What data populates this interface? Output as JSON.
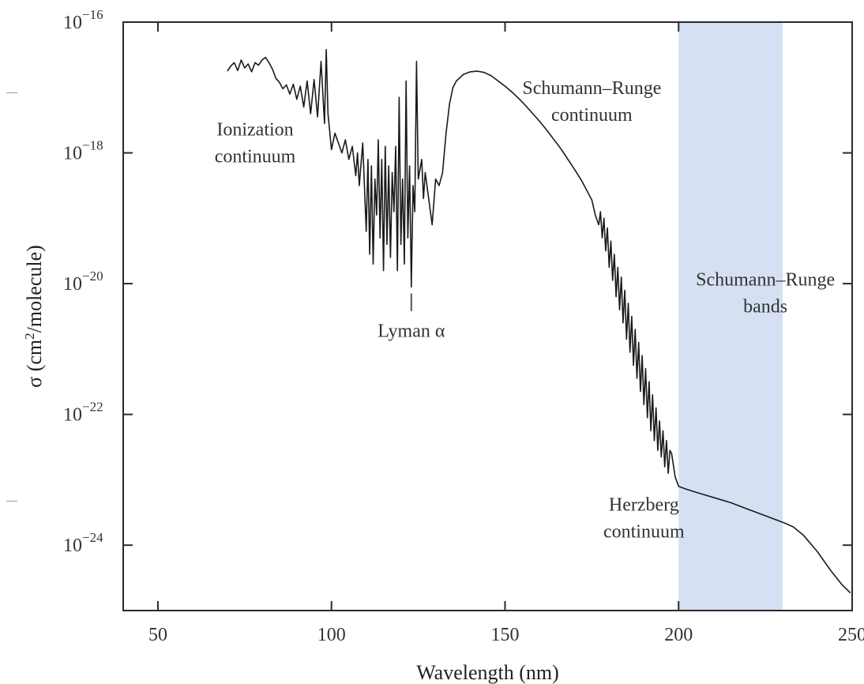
{
  "chart_data": {
    "type": "line",
    "title": "",
    "xlabel": "Wavelength (nm)",
    "ylabel": {
      "prefix": "σ (cm",
      "sup": "2",
      "suffix": "/molecule)"
    },
    "xlim": [
      40,
      250
    ],
    "ylim_log10": [
      -25,
      -16
    ],
    "y_scale": "log",
    "grid": false,
    "x_ticks": [
      {
        "value": 50,
        "label": "50"
      },
      {
        "value": 100,
        "label": "100"
      },
      {
        "value": 150,
        "label": "150"
      },
      {
        "value": 200,
        "label": "200"
      },
      {
        "value": 250,
        "label": "250"
      }
    ],
    "y_ticks": [
      {
        "exp": -16,
        "base": "10",
        "label": "−16"
      },
      {
        "exp": -18,
        "base": "10",
        "label": "−18"
      },
      {
        "exp": -20,
        "base": "10",
        "label": "−20"
      },
      {
        "exp": -22,
        "base": "10",
        "label": "−22"
      },
      {
        "exp": -24,
        "base": "10",
        "label": "−24"
      }
    ],
    "shaded_region": {
      "x_start": 200,
      "x_end": 230,
      "color": "#d6e0f3"
    },
    "series": [
      {
        "color": "#1a1a1a",
        "points": [
          [
            70,
            -16.75
          ],
          [
            71,
            -16.67
          ],
          [
            72,
            -16.62
          ],
          [
            73,
            -16.74
          ],
          [
            74,
            -16.58
          ],
          [
            75,
            -16.7
          ],
          [
            76,
            -16.64
          ],
          [
            77,
            -16.76
          ],
          [
            78,
            -16.62
          ],
          [
            79,
            -16.66
          ],
          [
            80,
            -16.58
          ],
          [
            81,
            -16.54
          ],
          [
            82,
            -16.62
          ],
          [
            83,
            -16.72
          ],
          [
            84,
            -16.86
          ],
          [
            85,
            -16.92
          ],
          [
            86,
            -17.02
          ],
          [
            87,
            -16.96
          ],
          [
            88,
            -17.1
          ],
          [
            89,
            -16.95
          ],
          [
            90,
            -17.18
          ],
          [
            91,
            -16.98
          ],
          [
            92,
            -17.3
          ],
          [
            93,
            -16.9
          ],
          [
            94,
            -17.4
          ],
          [
            95,
            -16.88
          ],
          [
            96,
            -17.45
          ],
          [
            97,
            -16.6
          ],
          [
            98,
            -17.55
          ],
          [
            98.5,
            -16.42
          ],
          [
            99,
            -17.4
          ],
          [
            100,
            -17.95
          ],
          [
            101,
            -17.7
          ],
          [
            102,
            -17.85
          ],
          [
            103,
            -18.0
          ],
          [
            104,
            -17.8
          ],
          [
            105,
            -18.1
          ],
          [
            106,
            -17.9
          ],
          [
            107,
            -18.35
          ],
          [
            107.5,
            -18.0
          ],
          [
            108,
            -18.5
          ],
          [
            109,
            -17.85
          ],
          [
            110,
            -19.2
          ],
          [
            110.5,
            -18.1
          ],
          [
            111,
            -19.55
          ],
          [
            111.5,
            -18.2
          ],
          [
            112,
            -19.7
          ],
          [
            112.5,
            -18.4
          ],
          [
            113,
            -18.95
          ],
          [
            113.5,
            -17.8
          ],
          [
            114,
            -19.3
          ],
          [
            114.5,
            -18.1
          ],
          [
            115,
            -19.8
          ],
          [
            115.5,
            -17.9
          ],
          [
            116,
            -19.4
          ],
          [
            116.5,
            -18.2
          ],
          [
            117,
            -19.6
          ],
          [
            117.5,
            -18.3
          ],
          [
            118,
            -18.9
          ],
          [
            118.5,
            -17.9
          ],
          [
            119,
            -19.8
          ],
          [
            119.5,
            -17.15
          ],
          [
            120,
            -19.4
          ],
          [
            120.5,
            -18.4
          ],
          [
            121,
            -19.7
          ],
          [
            121.5,
            -16.9
          ],
          [
            122,
            -19.3
          ],
          [
            122.5,
            -18.2
          ],
          [
            123,
            -20.05
          ],
          [
            123.5,
            -18.5
          ],
          [
            124,
            -18.9
          ],
          [
            124.5,
            -16.6
          ],
          [
            125,
            -18.4
          ],
          [
            126,
            -18.1
          ],
          [
            126.5,
            -18.7
          ],
          [
            127,
            -18.3
          ],
          [
            128,
            -18.7
          ],
          [
            129,
            -19.1
          ],
          [
            130,
            -18.4
          ],
          [
            131,
            -18.5
          ],
          [
            132,
            -18.3
          ],
          [
            133,
            -17.7
          ],
          [
            134,
            -17.25
          ],
          [
            135,
            -17.0
          ],
          [
            136,
            -16.9
          ],
          [
            138,
            -16.8
          ],
          [
            140,
            -16.76
          ],
          [
            142,
            -16.75
          ],
          [
            144,
            -16.77
          ],
          [
            146,
            -16.82
          ],
          [
            148,
            -16.9
          ],
          [
            150,
            -16.98
          ],
          [
            152,
            -17.07
          ],
          [
            154,
            -17.17
          ],
          [
            156,
            -17.28
          ],
          [
            158,
            -17.4
          ],
          [
            160,
            -17.52
          ],
          [
            162,
            -17.65
          ],
          [
            164,
            -17.79
          ],
          [
            166,
            -17.93
          ],
          [
            168,
            -18.09
          ],
          [
            170,
            -18.25
          ],
          [
            172,
            -18.42
          ],
          [
            174,
            -18.62
          ],
          [
            175,
            -18.72
          ],
          [
            176,
            -18.95
          ],
          [
            177,
            -19.1
          ],
          [
            177.5,
            -18.9
          ],
          [
            178,
            -19.3
          ],
          [
            178.5,
            -19.0
          ],
          [
            179,
            -19.5
          ],
          [
            179.5,
            -19.15
          ],
          [
            180,
            -19.75
          ],
          [
            180.5,
            -19.35
          ],
          [
            181,
            -19.95
          ],
          [
            181.5,
            -19.55
          ],
          [
            182,
            -20.2
          ],
          [
            182.5,
            -19.75
          ],
          [
            183,
            -20.4
          ],
          [
            183.5,
            -19.9
          ],
          [
            184,
            -20.6
          ],
          [
            184.5,
            -20.1
          ],
          [
            185,
            -20.85
          ],
          [
            185.5,
            -20.3
          ],
          [
            186,
            -21.05
          ],
          [
            186.5,
            -20.5
          ],
          [
            187,
            -21.25
          ],
          [
            187.5,
            -20.7
          ],
          [
            188,
            -21.45
          ],
          [
            188.5,
            -20.9
          ],
          [
            189,
            -21.65
          ],
          [
            189.5,
            -21.1
          ],
          [
            190,
            -21.85
          ],
          [
            190.5,
            -21.3
          ],
          [
            191,
            -22.05
          ],
          [
            191.5,
            -21.5
          ],
          [
            192,
            -22.25
          ],
          [
            192.5,
            -21.7
          ],
          [
            193,
            -22.4
          ],
          [
            193.5,
            -21.9
          ],
          [
            194,
            -22.55
          ],
          [
            194.5,
            -22.1
          ],
          [
            195,
            -22.65
          ],
          [
            195.5,
            -22.25
          ],
          [
            196,
            -22.8
          ],
          [
            196.5,
            -22.4
          ],
          [
            197,
            -22.9
          ],
          [
            197.5,
            -22.55
          ],
          [
            198,
            -22.6
          ],
          [
            199,
            -22.95
          ],
          [
            200,
            -23.1
          ],
          [
            202,
            -23.14
          ],
          [
            205,
            -23.19
          ],
          [
            210,
            -23.27
          ],
          [
            215,
            -23.35
          ],
          [
            220,
            -23.45
          ],
          [
            225,
            -23.55
          ],
          [
            230,
            -23.65
          ],
          [
            233,
            -23.72
          ],
          [
            236,
            -23.85
          ],
          [
            240,
            -24.1
          ],
          [
            244,
            -24.4
          ],
          [
            247,
            -24.6
          ],
          [
            249.5,
            -24.73
          ]
        ]
      }
    ],
    "annotations": [
      {
        "id": "ionization",
        "lines": [
          "Ionization",
          "continuum"
        ],
        "x": 78,
        "y_log": -17.84
      },
      {
        "id": "lyman",
        "lines": [
          "Lyman α"
        ],
        "x": 123,
        "y_log": -20.72
      },
      {
        "id": "sr-continuum",
        "lines": [
          "Schumann–Runge",
          "continuum"
        ],
        "x": 175,
        "y_log": -17.21
      },
      {
        "id": "sr-bands",
        "lines": [
          "Schumann–Runge",
          "bands"
        ],
        "x": 225,
        "y_log": -20.14
      },
      {
        "id": "herzberg",
        "lines": [
          "Herzberg",
          "continuum"
        ],
        "x": 190,
        "y_log": -23.58
      }
    ],
    "lyman_marker_x": 123
  }
}
